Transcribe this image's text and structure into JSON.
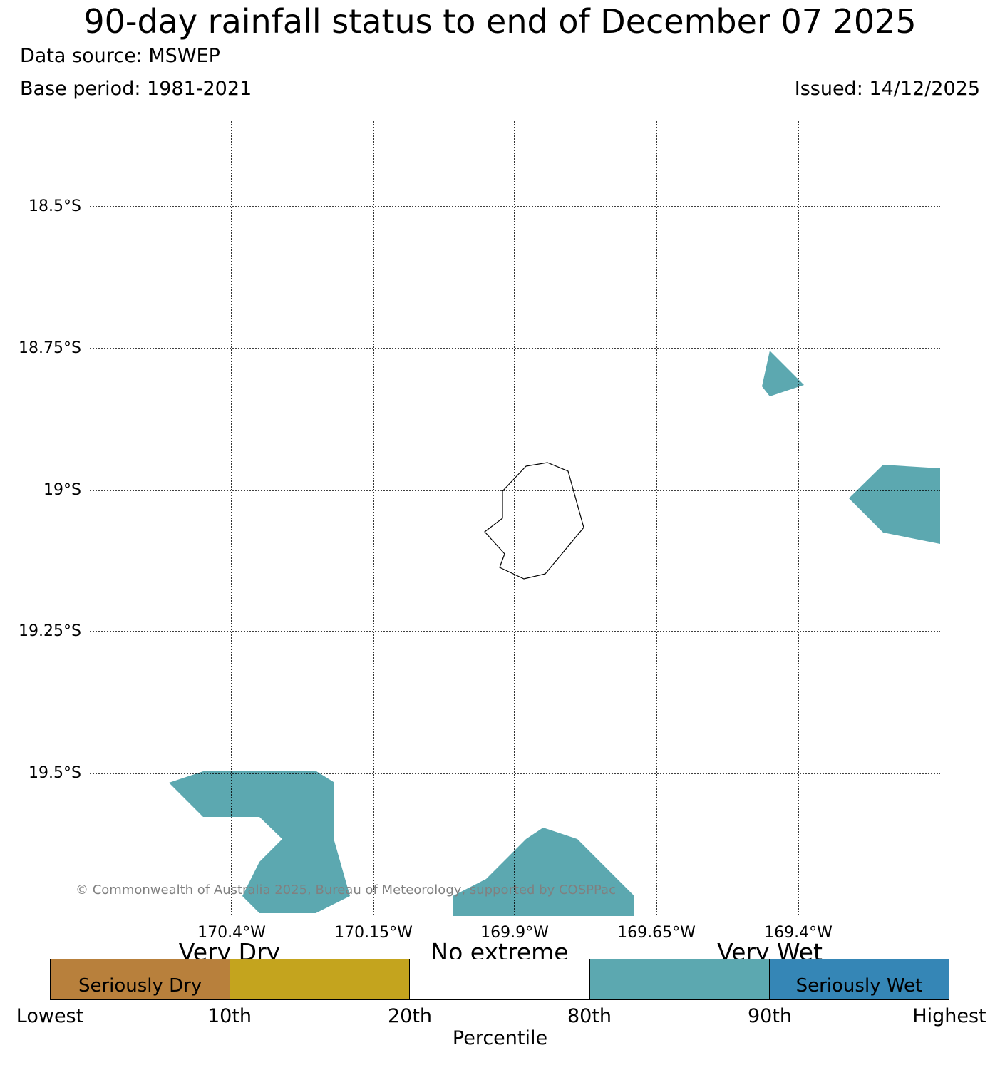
{
  "title": "90-day rainfall status to end of December 07 2025",
  "data_source": "Data source: MSWEP",
  "base_period": "Base period: 1981-2021",
  "issued": "Issued: 14/12/2025",
  "map": {
    "lat_labels": [
      "18.5°S",
      "18.75°S",
      "19°S",
      "19.25°S",
      "19.5°S"
    ],
    "lon_labels": [
      "170.4°W",
      "170.15°W",
      "169.9°W",
      "169.65°W",
      "169.4°W"
    ],
    "copyright": "© Commonwealth of Australia 2025, Bureau of Meteorology, supported by COSPPac",
    "colors": {
      "very_wet": "#5ca8b0",
      "coastline": "#000000",
      "grid": "#000000"
    },
    "regions": [
      {
        "category": "very-wet",
        "location": "north-east"
      },
      {
        "category": "very-wet",
        "location": "east"
      },
      {
        "category": "very-wet",
        "location": "south-west"
      },
      {
        "category": "very-wet",
        "location": "south-centre"
      }
    ]
  },
  "legend": {
    "group_labels": [
      "Very Dry",
      "No extreme",
      "Very Wet"
    ],
    "segments": [
      {
        "label": "Seriously Dry",
        "color": "#b8803c"
      },
      {
        "label": "",
        "color": "#c4a41e"
      },
      {
        "label": "",
        "color": "#ffffff"
      },
      {
        "label": "",
        "color": "#5ca8b0"
      },
      {
        "label": "Seriously Wet",
        "color": "#3586b6"
      }
    ],
    "ticks": [
      "Lowest",
      "10th",
      "20th",
      "80th",
      "90th",
      "Highest"
    ],
    "axis_title": "Percentile"
  }
}
